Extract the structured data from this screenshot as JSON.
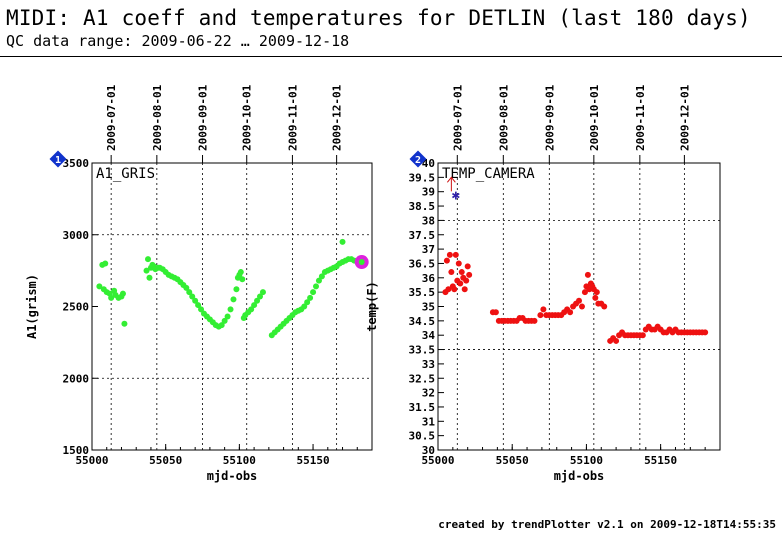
{
  "header": {
    "title": "MIDI: A1 coeff and temperatures for DETLIN (last 180 days)",
    "subtitle": "QC data range: 2009-06-22 … 2009-12-18"
  },
  "footer": {
    "credit": "created by trendPlotter v2.1 on 2009-12-18T14:55:35"
  },
  "colors": {
    "green": "#33ee33",
    "red": "#ee1111",
    "magenta": "#dd22dd",
    "badge": "#1133cc",
    "star": "#3322aa",
    "arrow": "#cc1111"
  },
  "chart_data": [
    {
      "type": "scatter",
      "badge": "1",
      "title": "A1_GRIS",
      "xlabel": "mjd-obs",
      "ylabel": "A1(grism)",
      "xlim": [
        55000,
        55190
      ],
      "ylim": [
        1500,
        3500
      ],
      "xticks": [
        55000,
        55050,
        55100,
        55150
      ],
      "yticks": [
        1500,
        2000,
        2500,
        3000,
        3500
      ],
      "ygrid": [
        2000,
        3000
      ],
      "date_ticks": [
        {
          "mjd": 55013,
          "label": "2009-07-01"
        },
        {
          "mjd": 55044,
          "label": "2009-08-01"
        },
        {
          "mjd": 55075,
          "label": "2009-09-01"
        },
        {
          "mjd": 55105,
          "label": "2009-10-01"
        },
        {
          "mjd": 55136,
          "label": "2009-11-01"
        },
        {
          "mjd": 55166,
          "label": "2009-12-01"
        }
      ],
      "points": [
        [
          55005,
          2640
        ],
        [
          55007,
          2790
        ],
        [
          55009,
          2800
        ],
        [
          55008,
          2620
        ],
        [
          55010,
          2600
        ],
        [
          55012,
          2590
        ],
        [
          55013,
          2560
        ],
        [
          55015,
          2610
        ],
        [
          55016,
          2580
        ],
        [
          55018,
          2560
        ],
        [
          55020,
          2570
        ],
        [
          55021,
          2590
        ],
        [
          55022,
          2380
        ],
        [
          55037,
          2750
        ],
        [
          55038,
          2830
        ],
        [
          55039,
          2700
        ],
        [
          55040,
          2770
        ],
        [
          55041,
          2790
        ],
        [
          55042,
          2780
        ],
        [
          55043,
          2760
        ],
        [
          55045,
          2770
        ],
        [
          55046,
          2770
        ],
        [
          55048,
          2760
        ],
        [
          55050,
          2740
        ],
        [
          55052,
          2720
        ],
        [
          55054,
          2710
        ],
        [
          55056,
          2700
        ],
        [
          55058,
          2690
        ],
        [
          55060,
          2670
        ],
        [
          55062,
          2650
        ],
        [
          55064,
          2630
        ],
        [
          55066,
          2600
        ],
        [
          55068,
          2570
        ],
        [
          55070,
          2540
        ],
        [
          55072,
          2510
        ],
        [
          55074,
          2480
        ],
        [
          55076,
          2450
        ],
        [
          55078,
          2430
        ],
        [
          55080,
          2410
        ],
        [
          55082,
          2390
        ],
        [
          55084,
          2370
        ],
        [
          55086,
          2360
        ],
        [
          55088,
          2370
        ],
        [
          55090,
          2400
        ],
        [
          55092,
          2430
        ],
        [
          55094,
          2480
        ],
        [
          55096,
          2550
        ],
        [
          55098,
          2620
        ],
        [
          55099,
          2700
        ],
        [
          55100,
          2720
        ],
        [
          55101,
          2740
        ],
        [
          55102,
          2690
        ],
        [
          55103,
          2420
        ],
        [
          55104,
          2440
        ],
        [
          55106,
          2460
        ],
        [
          55108,
          2480
        ],
        [
          55110,
          2510
        ],
        [
          55112,
          2540
        ],
        [
          55114,
          2570
        ],
        [
          55116,
          2600
        ],
        [
          55122,
          2300
        ],
        [
          55124,
          2320
        ],
        [
          55126,
          2340
        ],
        [
          55128,
          2360
        ],
        [
          55130,
          2380
        ],
        [
          55132,
          2400
        ],
        [
          55134,
          2420
        ],
        [
          55136,
          2440
        ],
        [
          55138,
          2460
        ],
        [
          55140,
          2470
        ],
        [
          55142,
          2480
        ],
        [
          55144,
          2500
        ],
        [
          55146,
          2530
        ],
        [
          55148,
          2560
        ],
        [
          55150,
          2600
        ],
        [
          55152,
          2640
        ],
        [
          55154,
          2680
        ],
        [
          55156,
          2710
        ],
        [
          55158,
          2740
        ],
        [
          55160,
          2750
        ],
        [
          55162,
          2760
        ],
        [
          55164,
          2770
        ],
        [
          55166,
          2780
        ],
        [
          55168,
          2800
        ],
        [
          55170,
          2810
        ],
        [
          55172,
          2820
        ],
        [
          55174,
          2830
        ],
        [
          55176,
          2830
        ],
        [
          55170,
          2950
        ],
        [
          55178,
          2820
        ],
        [
          55180,
          2810
        ]
      ],
      "highlight": [
        55183,
        2810
      ]
    },
    {
      "type": "scatter",
      "badge": "2",
      "title": "TEMP_CAMERA",
      "xlabel": "mjd-obs",
      "ylabel": "temp(F)",
      "xlim": [
        55000,
        55190
      ],
      "ylim": [
        30,
        40
      ],
      "xticks": [
        55000,
        55050,
        55100,
        55150
      ],
      "yticks": [
        30,
        30.5,
        31,
        31.5,
        32,
        32.5,
        33,
        33.5,
        34,
        34.5,
        35,
        35.5,
        36,
        36.5,
        37,
        37.5,
        38,
        38.5,
        39,
        39.5,
        40
      ],
      "ygrid": [
        33.5,
        38
      ],
      "date_ticks": [
        {
          "mjd": 55013,
          "label": "2009-07-01"
        },
        {
          "mjd": 55044,
          "label": "2009-08-01"
        },
        {
          "mjd": 55075,
          "label": "2009-09-01"
        },
        {
          "mjd": 55105,
          "label": "2009-10-01"
        },
        {
          "mjd": 55136,
          "label": "2009-11-01"
        },
        {
          "mjd": 55166,
          "label": "2009-12-01"
        }
      ],
      "points": [
        [
          55005,
          35.5
        ],
        [
          55006,
          36.6
        ],
        [
          55007,
          35.6
        ],
        [
          55008,
          36.8
        ],
        [
          55009,
          36.2
        ],
        [
          55010,
          35.7
        ],
        [
          55011,
          35.6
        ],
        [
          55012,
          36.8
        ],
        [
          55013,
          35.9
        ],
        [
          55014,
          36.5
        ],
        [
          55015,
          35.8
        ],
        [
          55016,
          36.2
        ],
        [
          55017,
          36.0
        ],
        [
          55018,
          35.6
        ],
        [
          55019,
          35.9
        ],
        [
          55020,
          36.4
        ],
        [
          55021,
          36.1
        ],
        [
          55037,
          34.8
        ],
        [
          55039,
          34.8
        ],
        [
          55041,
          34.5
        ],
        [
          55043,
          34.5
        ],
        [
          55045,
          34.5
        ],
        [
          55047,
          34.5
        ],
        [
          55049,
          34.5
        ],
        [
          55051,
          34.5
        ],
        [
          55053,
          34.5
        ],
        [
          55055,
          34.6
        ],
        [
          55057,
          34.6
        ],
        [
          55059,
          34.5
        ],
        [
          55061,
          34.5
        ],
        [
          55063,
          34.5
        ],
        [
          55065,
          34.5
        ],
        [
          55069,
          34.7
        ],
        [
          55071,
          34.9
        ],
        [
          55073,
          34.7
        ],
        [
          55075,
          34.7
        ],
        [
          55077,
          34.7
        ],
        [
          55079,
          34.7
        ],
        [
          55081,
          34.7
        ],
        [
          55083,
          34.7
        ],
        [
          55085,
          34.8
        ],
        [
          55087,
          34.9
        ],
        [
          55089,
          34.8
        ],
        [
          55091,
          35.0
        ],
        [
          55093,
          35.1
        ],
        [
          55095,
          35.2
        ],
        [
          55097,
          35.0
        ],
        [
          55099,
          35.5
        ],
        [
          55100,
          35.7
        ],
        [
          55101,
          36.1
        ],
        [
          55102,
          35.6
        ],
        [
          55103,
          35.8
        ],
        [
          55104,
          35.7
        ],
        [
          55105,
          35.6
        ],
        [
          55106,
          35.3
        ],
        [
          55107,
          35.5
        ],
        [
          55108,
          35.1
        ],
        [
          55110,
          35.1
        ],
        [
          55112,
          35.0
        ],
        [
          55116,
          33.8
        ],
        [
          55118,
          33.9
        ],
        [
          55120,
          33.8
        ],
        [
          55122,
          34.0
        ],
        [
          55124,
          34.1
        ],
        [
          55126,
          34.0
        ],
        [
          55128,
          34.0
        ],
        [
          55130,
          34.0
        ],
        [
          55132,
          34.0
        ],
        [
          55134,
          34.0
        ],
        [
          55136,
          34.0
        ],
        [
          55138,
          34.0
        ],
        [
          55140,
          34.2
        ],
        [
          55142,
          34.3
        ],
        [
          55144,
          34.2
        ],
        [
          55146,
          34.2
        ],
        [
          55148,
          34.3
        ],
        [
          55150,
          34.2
        ],
        [
          55152,
          34.1
        ],
        [
          55154,
          34.1
        ],
        [
          55156,
          34.2
        ],
        [
          55158,
          34.1
        ],
        [
          55160,
          34.2
        ],
        [
          55162,
          34.1
        ],
        [
          55164,
          34.1
        ],
        [
          55166,
          34.1
        ],
        [
          55168,
          34.1
        ],
        [
          55170,
          34.1
        ],
        [
          55172,
          34.1
        ],
        [
          55174,
          34.1
        ],
        [
          55176,
          34.1
        ],
        [
          55178,
          34.1
        ],
        [
          55180,
          34.1
        ]
      ],
      "marker_star": [
        55012,
        38.9
      ],
      "marker_arrow": [
        55009,
        39.5
      ]
    }
  ]
}
